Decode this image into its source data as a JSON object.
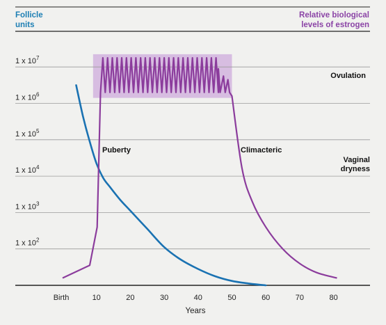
{
  "chart_data": {
    "type": "line",
    "left_axis_title": [
      "Follicle",
      "units"
    ],
    "right_axis_title": [
      "Relative biological",
      "levels of estrogen"
    ],
    "xlabel": "Years",
    "x_ticks": [
      "Birth",
      "10",
      "20",
      "30",
      "40",
      "50",
      "60",
      "70",
      "80"
    ],
    "x_tick_values": [
      0,
      10,
      20,
      30,
      40,
      50,
      60,
      70,
      80
    ],
    "y_ticks": [
      {
        "base": "1 x 10",
        "exp": "7",
        "log": 7
      },
      {
        "base": "1 x 10",
        "exp": "6",
        "log": 6
      },
      {
        "base": "1 x 10",
        "exp": "5",
        "log": 5
      },
      {
        "base": "1 x 10",
        "exp": "4",
        "log": 4
      },
      {
        "base": "1 x 10",
        "exp": "3",
        "log": 3
      },
      {
        "base": "1 x 10",
        "exp": "2",
        "log": 2
      }
    ],
    "y_scale": "log",
    "ylim_log": [
      1,
      7.25
    ],
    "xlim": [
      -4,
      89
    ],
    "grid": "horizontal",
    "band": {
      "label": "Ovulation",
      "x_start": 9,
      "x_end": 50,
      "y_log_start": 6.15,
      "y_log_end": 7.35
    },
    "annotations": [
      "Puberty",
      "Climacteric",
      "Vaginal",
      "dryness"
    ],
    "series": [
      {
        "color": "#1a72b2",
        "x": [
          4,
          6,
          8,
          10,
          12,
          14,
          17,
          20,
          25,
          30,
          35,
          40,
          45,
          50,
          55,
          60
        ],
        "y": [
          6.5,
          5.65,
          4.95,
          4.35,
          3.95,
          3.7,
          3.35,
          3.05,
          2.55,
          2.05,
          1.7,
          1.45,
          1.25,
          1.12,
          1.05,
          1.0
        ]
      },
      {
        "color": "#8b3c9c",
        "baseline": [
          [
            0,
            1.2
          ],
          [
            8,
            1.55
          ],
          [
            10.2,
            2.6
          ],
          [
            11.2,
            6.3
          ]
        ],
        "oscillation": {
          "x_start": 11.2,
          "x_end": 46,
          "cycles": 25,
          "high": 7.25,
          "low": 6.3
        },
        "damped": [
          [
            46,
            6.95
          ],
          [
            46.5,
            6.3
          ],
          [
            47.5,
            6.75
          ],
          [
            48,
            6.3
          ],
          [
            48.8,
            6.65
          ],
          [
            49.3,
            6.3
          ]
        ],
        "decline": [
          [
            50,
            6.2
          ],
          [
            53,
            4.2
          ],
          [
            56,
            3.3
          ],
          [
            60,
            2.6
          ],
          [
            65,
            2.0
          ],
          [
            70,
            1.6
          ],
          [
            75,
            1.35
          ],
          [
            81,
            1.2
          ]
        ]
      }
    ]
  }
}
